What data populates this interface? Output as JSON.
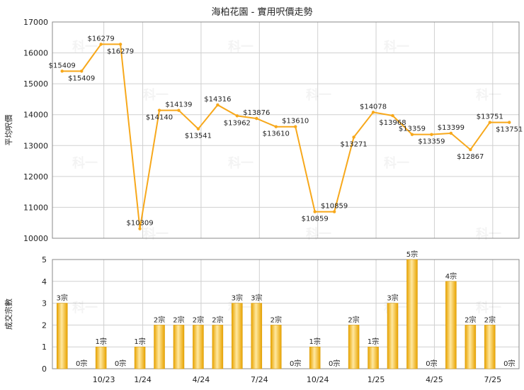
{
  "title": "海柏花園 - 實用呎價走勢",
  "watermark": "科一",
  "colors": {
    "line": "#f7a81b",
    "bar_light": "#ffe8a0",
    "bar_dark": "#e8a300",
    "grid": "#d0d0d0"
  },
  "chart_data": [
    {
      "type": "line",
      "ylabel": "平均呎價",
      "ylim": [
        10000,
        17000
      ],
      "yticks": [
        10000,
        11000,
        12000,
        13000,
        14000,
        15000,
        16000,
        17000
      ],
      "xtick_labels": [
        "10/23",
        "1/24",
        "4/24",
        "7/24",
        "10/24",
        "1/25",
        "4/25",
        "7/25"
      ],
      "grid": true,
      "values": [
        15409,
        15409,
        16279,
        16279,
        10309,
        14140,
        14139,
        13541,
        14316,
        13962,
        13876,
        13610,
        13610,
        10859,
        10859,
        13271,
        14078,
        13968,
        13359,
        13359,
        13399,
        12867,
        13751,
        13751
      ],
      "point_labels": [
        "$15409",
        "$15409",
        "$16279",
        "$16279",
        "$10309",
        "$14140",
        "$14139",
        "$13541",
        "$14316",
        "$13962",
        "$13876",
        "$13610",
        "$13610",
        "$10859",
        "$10859",
        "$13271",
        "$14078",
        "$13968",
        "$13359",
        "$13359",
        "$13399",
        "$12867",
        "$13751",
        "$13751"
      ]
    },
    {
      "type": "bar",
      "ylabel": "成交宗數",
      "ylim": [
        0,
        5
      ],
      "yticks": [
        0,
        1,
        2,
        3,
        4,
        5
      ],
      "xtick_labels": [
        "10/23",
        "1/24",
        "4/24",
        "7/24",
        "10/24",
        "1/25",
        "4/25",
        "7/25"
      ],
      "grid": true,
      "values": [
        3,
        0,
        1,
        0,
        1,
        2,
        2,
        2,
        2,
        3,
        3,
        2,
        0,
        1,
        0,
        2,
        1,
        3,
        5,
        0,
        4,
        2,
        2,
        0
      ],
      "bar_labels": [
        "3宗",
        "0宗",
        "1宗",
        "0宗",
        "1宗",
        "2宗",
        "2宗",
        "2宗",
        "2宗",
        "3宗",
        "3宗",
        "2宗",
        "0宗",
        "1宗",
        "0宗",
        "2宗",
        "1宗",
        "3宗",
        "5宗",
        "0宗",
        "4宗",
        "2宗",
        "2宗",
        "0宗"
      ]
    }
  ]
}
